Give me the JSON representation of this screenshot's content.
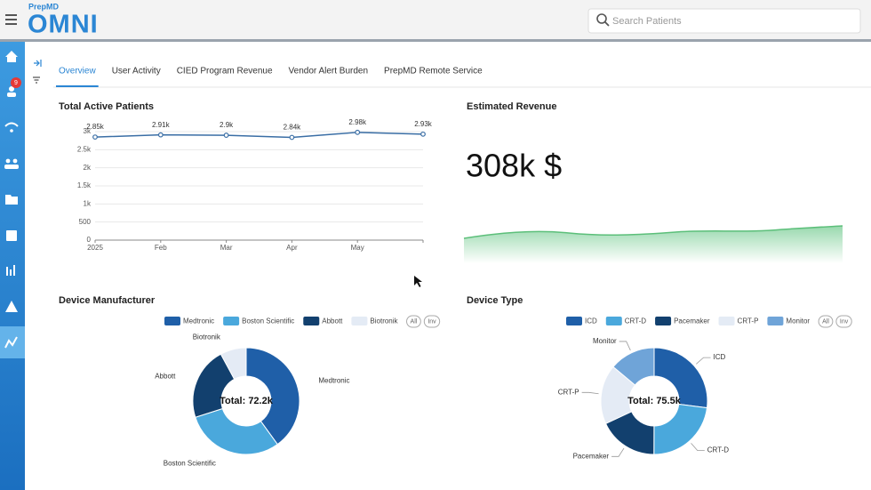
{
  "header": {
    "brand": "PrepMD",
    "logo": "OMNI",
    "search_placeholder": "Search Patients"
  },
  "sidebar": {
    "badge": "9"
  },
  "tabs": [
    "Overview",
    "User Activity",
    "CIED Program Revenue",
    "Vendor Alert Burden",
    "PrepMD Remote Service"
  ],
  "active_tab": 0,
  "revenue": {
    "title": "Estimated Revenue",
    "value": "308k $"
  },
  "chart_data": [
    {
      "type": "line",
      "title": "Total Active Patients",
      "categories": [
        "2025",
        "Feb",
        "Mar",
        "Apr",
        "May",
        null
      ],
      "values": [
        2850,
        2910,
        2900,
        2840,
        2980,
        2930
      ],
      "value_labels": [
        "2.85k",
        "2.91k",
        "2.9k",
        "2.84k",
        "2.98k",
        "2.93k"
      ],
      "color": "#3a6ea5",
      "ylim": [
        0,
        3000
      ],
      "yticks": [
        0,
        500,
        {
          "value": 1000,
          "label": "1k"
        },
        {
          "value": 1500,
          "label": "1.5k"
        },
        {
          "value": 2000,
          "label": "2k"
        },
        {
          "value": 2500,
          "label": "2.5k"
        },
        {
          "value": 3000,
          "label": "3k"
        }
      ],
      "grid": true
    },
    {
      "type": "donut",
      "title": "Device Manufacturer",
      "categories": [
        "Medtronic",
        "Boston Scientific",
        "Abbott",
        "Biotronik"
      ],
      "values": [
        28900,
        21700,
        15900,
        5700
      ],
      "colors": [
        "#1f5fa8",
        "#4aa8dc",
        "#12406e",
        "#e4ebf5"
      ],
      "center_label": "Total: 72.2k",
      "legend_buttons": [
        "All",
        "Inv"
      ],
      "leader_lines": false
    },
    {
      "type": "donut",
      "title": "Device Type",
      "categories": [
        "ICD",
        "CRT-D",
        "Pacemaker",
        "CRT-P",
        "Monitor"
      ],
      "values": [
        20400,
        17400,
        13600,
        13600,
        10500
      ],
      "colors": [
        "#1f5fa8",
        "#4aa8dc",
        "#12406e",
        "#e4ebf5",
        "#6fa4d8"
      ],
      "center_label": "Total: 75.5k",
      "legend_buttons": [
        "All",
        "Inv"
      ],
      "leader_lines": true
    }
  ]
}
